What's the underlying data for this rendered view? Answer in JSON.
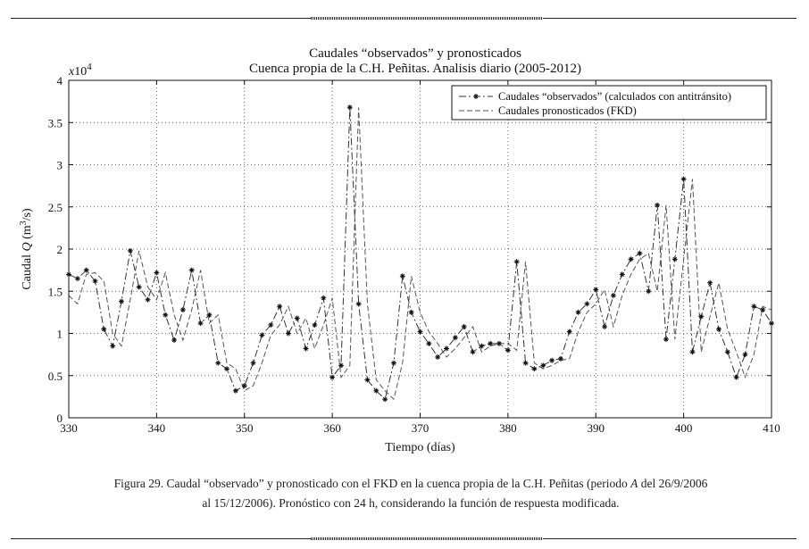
{
  "chart_data": {
    "type": "line",
    "title": "Caudales “observados” y pronosticados",
    "subtitle": "Cuenca propia de la C.H. Peñitas. Analisis diario (2005-2012)",
    "xlabel": "Tiempo (días)",
    "ylabel_prefix": "Caudal",
    "ylabel_q": "Q",
    "ylabel_unit_open": "(m",
    "ylabel_unit_exp": "3",
    "ylabel_unit_close": "/s)",
    "multiplier_base": "x10",
    "multiplier_exp": "4",
    "xlim": [
      330,
      410
    ],
    "ylim": [
      0,
      4
    ],
    "grid": true,
    "legend_position": "top-right",
    "xticks": [
      330,
      340,
      350,
      360,
      370,
      380,
      390,
      400,
      410
    ],
    "yticks": [
      0,
      0.5,
      1,
      1.5,
      2,
      2.5,
      3,
      3.5,
      4
    ],
    "ytick_labels": [
      "0",
      "0.5",
      "1",
      "1.5",
      "2",
      "2.5",
      "3",
      "3.5",
      "4"
    ],
    "xtick_labels": [
      "330",
      "340",
      "350",
      "360",
      "370",
      "380",
      "390",
      "400",
      "410"
    ],
    "series": [
      {
        "name": "Caudales “observados” (calculados con antitránsito)",
        "style": "dash-dot-marker",
        "x": [
          330,
          331,
          332,
          333,
          334,
          335,
          336,
          337,
          338,
          339,
          340,
          341,
          342,
          343,
          344,
          345,
          346,
          347,
          348,
          349,
          350,
          351,
          352,
          353,
          354,
          355,
          356,
          357,
          358,
          359,
          360,
          361,
          362,
          363,
          364,
          365,
          366,
          367,
          368,
          369,
          370,
          371,
          372,
          373,
          374,
          375,
          376,
          377,
          378,
          379,
          380,
          381,
          382,
          383,
          384,
          385,
          386,
          387,
          388,
          389,
          390,
          391,
          392,
          393,
          394,
          395,
          396,
          397,
          398,
          399,
          400,
          401,
          402,
          403,
          404,
          405,
          406,
          407,
          408,
          409,
          410
        ],
        "values": [
          1.7,
          1.65,
          1.75,
          1.62,
          1.05,
          0.85,
          1.38,
          1.98,
          1.55,
          1.4,
          1.72,
          1.22,
          0.92,
          1.28,
          1.75,
          1.12,
          1.22,
          0.65,
          0.58,
          0.32,
          0.38,
          0.65,
          0.98,
          1.1,
          1.32,
          1.0,
          1.18,
          0.82,
          1.1,
          1.42,
          0.48,
          0.62,
          3.68,
          1.35,
          0.45,
          0.32,
          0.22,
          0.65,
          1.68,
          1.25,
          1.02,
          0.88,
          0.72,
          0.82,
          0.95,
          1.08,
          0.78,
          0.85,
          0.88,
          0.88,
          0.8,
          1.85,
          0.65,
          0.58,
          0.62,
          0.68,
          0.7,
          1.02,
          1.25,
          1.35,
          1.52,
          1.08,
          1.45,
          1.7,
          1.88,
          1.95,
          1.5,
          2.52,
          0.93,
          1.88,
          2.83,
          0.78,
          1.2,
          1.6,
          1.05,
          0.78,
          0.48,
          0.75,
          1.32,
          1.28,
          1.12
        ]
      },
      {
        "name": "Caudales pronosticados (FKD)",
        "style": "dashed",
        "x": [
          330,
          331,
          332,
          333,
          334,
          335,
          336,
          337,
          338,
          339,
          340,
          341,
          342,
          343,
          344,
          345,
          346,
          347,
          348,
          349,
          350,
          351,
          352,
          353,
          354,
          355,
          356,
          357,
          358,
          359,
          360,
          361,
          362,
          363,
          364,
          365,
          366,
          367,
          368,
          369,
          370,
          371,
          372,
          373,
          374,
          375,
          376,
          377,
          378,
          379,
          380,
          381,
          382,
          383,
          384,
          385,
          386,
          387,
          388,
          389,
          390,
          391,
          392,
          393,
          394,
          395,
          396,
          397,
          398,
          399,
          400,
          401,
          402,
          403,
          404,
          405,
          406,
          407,
          408,
          409,
          410
        ],
        "values": [
          1.45,
          1.35,
          1.7,
          1.72,
          1.62,
          1.0,
          0.85,
          1.4,
          1.98,
          1.55,
          1.4,
          1.72,
          1.22,
          0.92,
          1.28,
          1.75,
          1.12,
          1.22,
          0.65,
          0.58,
          0.32,
          0.38,
          0.65,
          0.98,
          1.1,
          1.32,
          1.0,
          1.18,
          0.82,
          1.1,
          1.42,
          0.48,
          0.62,
          3.68,
          1.35,
          0.45,
          0.32,
          0.22,
          0.65,
          1.68,
          1.25,
          1.02,
          0.88,
          0.72,
          0.82,
          0.95,
          1.08,
          0.78,
          0.85,
          0.88,
          0.88,
          0.8,
          1.85,
          0.65,
          0.58,
          0.62,
          0.68,
          0.7,
          1.02,
          1.25,
          1.35,
          1.52,
          1.08,
          1.45,
          1.7,
          1.88,
          1.95,
          1.5,
          2.52,
          0.93,
          1.88,
          2.83,
          0.78,
          1.2,
          1.6,
          1.05,
          0.78,
          0.48,
          0.75,
          1.32,
          1.28
        ]
      }
    ]
  },
  "caption": {
    "line1_a": "Figura 29. Caudal “observado” y pronosticado con el FKD en la cuenca propia de la C.H. Peñitas (periodo ",
    "line1_period": "A",
    "line1_b": " del 26/9/2006",
    "line2": "al 15/12/2006). Pronóstico con 24 h, considerando la función de respuesta modificada."
  }
}
